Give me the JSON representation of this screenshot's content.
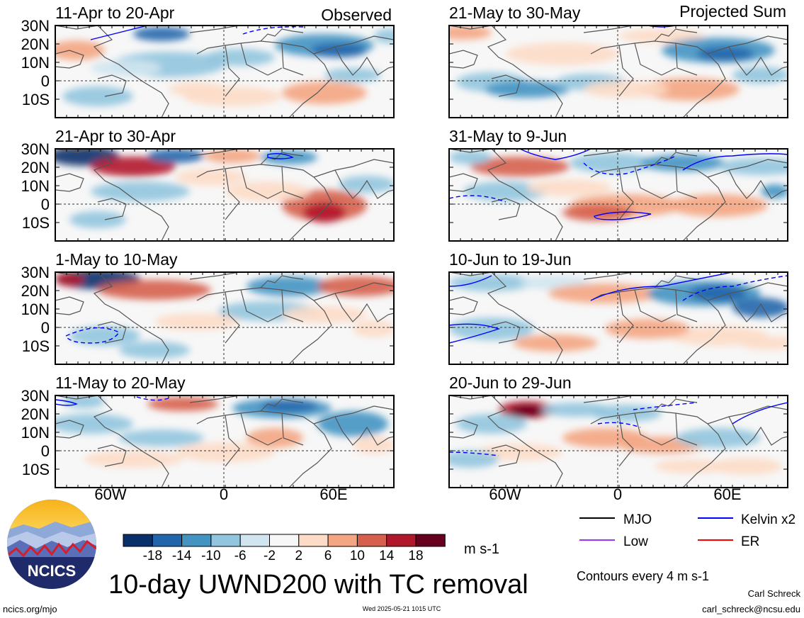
{
  "observed_label": "Observed",
  "projected_label": "Projected Sum",
  "lat_labels": [
    "30N",
    "20N",
    "10N",
    "0",
    "10S"
  ],
  "lon_labels": [
    "60W",
    "0",
    "60E"
  ],
  "panels": [
    {
      "title": "11-Apr to 20-Apr",
      "key": "o1"
    },
    {
      "title": "21-Apr to 30-Apr",
      "key": "o2"
    },
    {
      "title": "1-May to 10-May",
      "key": "o3"
    },
    {
      "title": "11-May to 20-May",
      "key": "o4"
    },
    {
      "title": "21-May to 30-May",
      "key": "p1"
    },
    {
      "title": "31-May to 9-Jun",
      "key": "p2"
    },
    {
      "title": "10-Jun to 19-Jun",
      "key": "p3"
    },
    {
      "title": "20-Jun to 29-Jun",
      "key": "p4"
    }
  ],
  "colorbar": {
    "ticks": [
      "-18",
      "-14",
      "-10",
      "-6",
      "-2",
      "2",
      "6",
      "10",
      "14",
      "18"
    ],
    "colors": [
      "#08306b",
      "#2166ac",
      "#4393c3",
      "#92c5de",
      "#d1e5f0",
      "#f7f7f7",
      "#fddbc7",
      "#f4a582",
      "#d6604d",
      "#b2182b",
      "#67001f"
    ],
    "units": "m s-1"
  },
  "legend": {
    "items": [
      {
        "label": "MJO",
        "color": "#000000"
      },
      {
        "label": "Kelvin x2",
        "color": "#0000ff"
      },
      {
        "label": "Low",
        "color": "#9933ff"
      },
      {
        "label": "ER",
        "color": "#ff0000"
      }
    ],
    "contour_note": "Contours every 4 m s-1"
  },
  "logo_text": "NCICS",
  "main_title": "10-day UWND200 with TC removal",
  "footer": {
    "url": "ncics.org/mjo",
    "timestamp": "Wed 2025-05-21 1015 UTC",
    "author": "Carl Schreck",
    "email": "carl_schreck@ncsu.edu"
  }
}
